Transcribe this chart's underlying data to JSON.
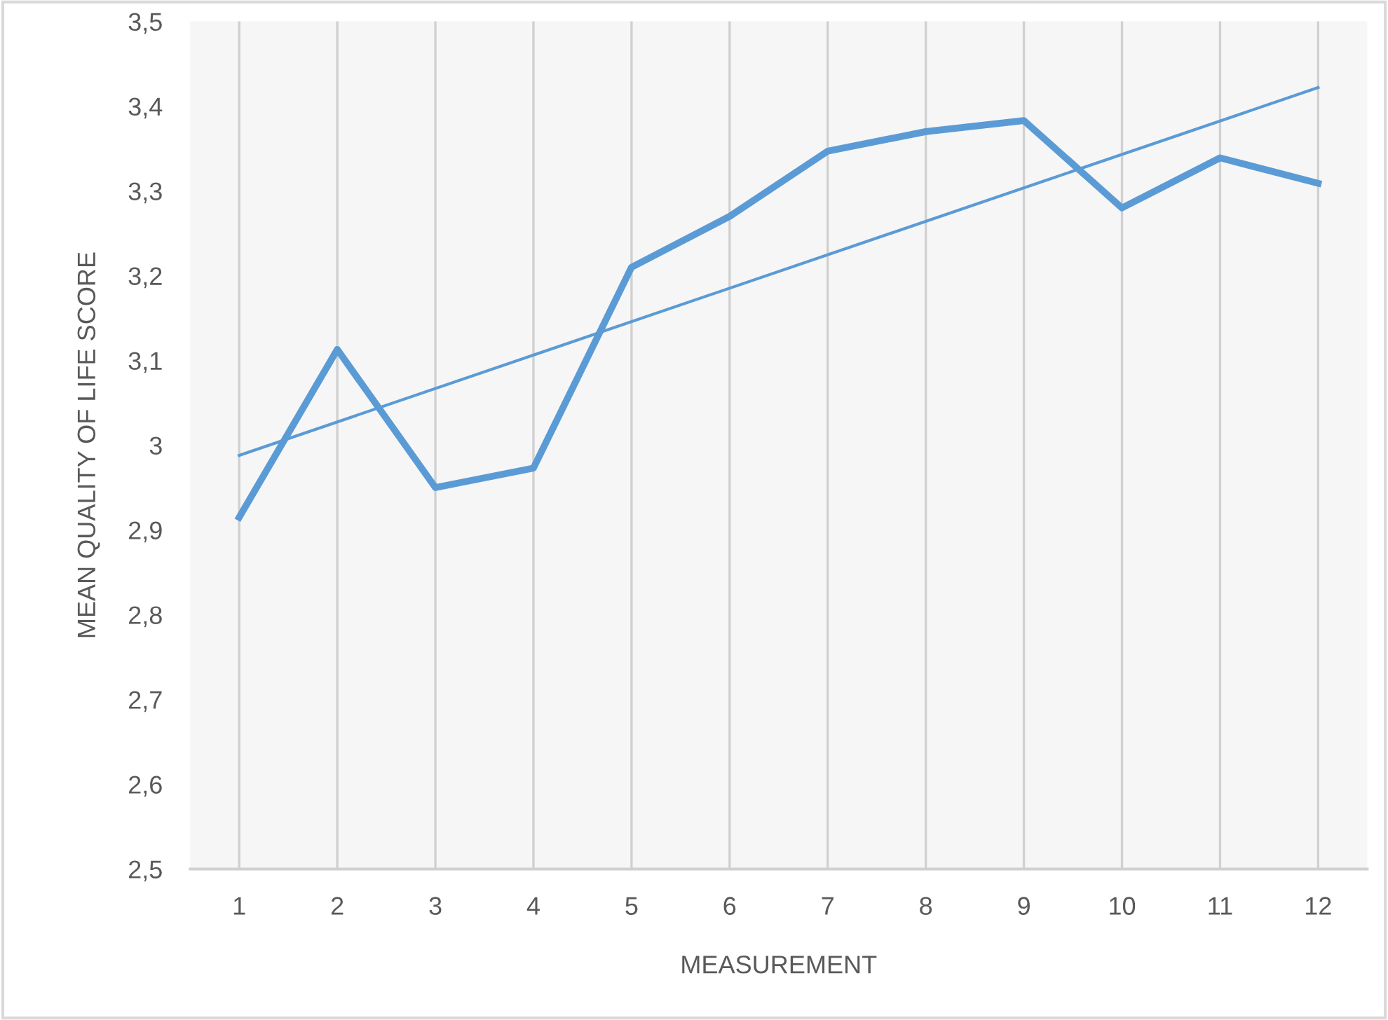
{
  "chart_data": {
    "type": "line",
    "xlabel": "MEASUREMENT",
    "ylabel": "MEAN QUALITY OF LIFE SCORE",
    "x": [
      1,
      2,
      3,
      4,
      5,
      6,
      7,
      8,
      9,
      10,
      11,
      12
    ],
    "series": [
      {
        "color": "#5b9bd5",
        "values": [
          2.915,
          3.113,
          2.95,
          2.973,
          3.21,
          3.27,
          3.347,
          3.37,
          3.383,
          3.28,
          3.339,
          3.309
        ]
      },
      {
        "color": "#5b9bd5",
        "x": [
          1,
          12
        ],
        "values": [
          2.988,
          3.422
        ]
      }
    ],
    "xlim": [
      0.5,
      12.5
    ],
    "xticks": [
      1,
      2,
      3,
      4,
      5,
      6,
      7,
      8,
      9,
      10,
      11,
      12
    ],
    "ylim": [
      2.5,
      3.5
    ],
    "yticks": [
      {
        "value": 2.5,
        "label": "2,5"
      },
      {
        "value": 2.6,
        "label": "2,6"
      },
      {
        "value": 2.7,
        "label": "2,7"
      },
      {
        "value": 2.8,
        "label": "2,8"
      },
      {
        "value": 2.9,
        "label": "2,9"
      },
      {
        "value": 3,
        "label": "3"
      },
      {
        "value": 3.1,
        "label": "3,1"
      },
      {
        "value": 3.2,
        "label": "3,2"
      },
      {
        "value": 3.3,
        "label": "3,3"
      },
      {
        "value": 3.4,
        "label": "3,4"
      },
      {
        "value": 3.5,
        "label": "3,5"
      }
    ],
    "grid": "x",
    "legend": false,
    "marker": "none",
    "line_style": "solid"
  }
}
